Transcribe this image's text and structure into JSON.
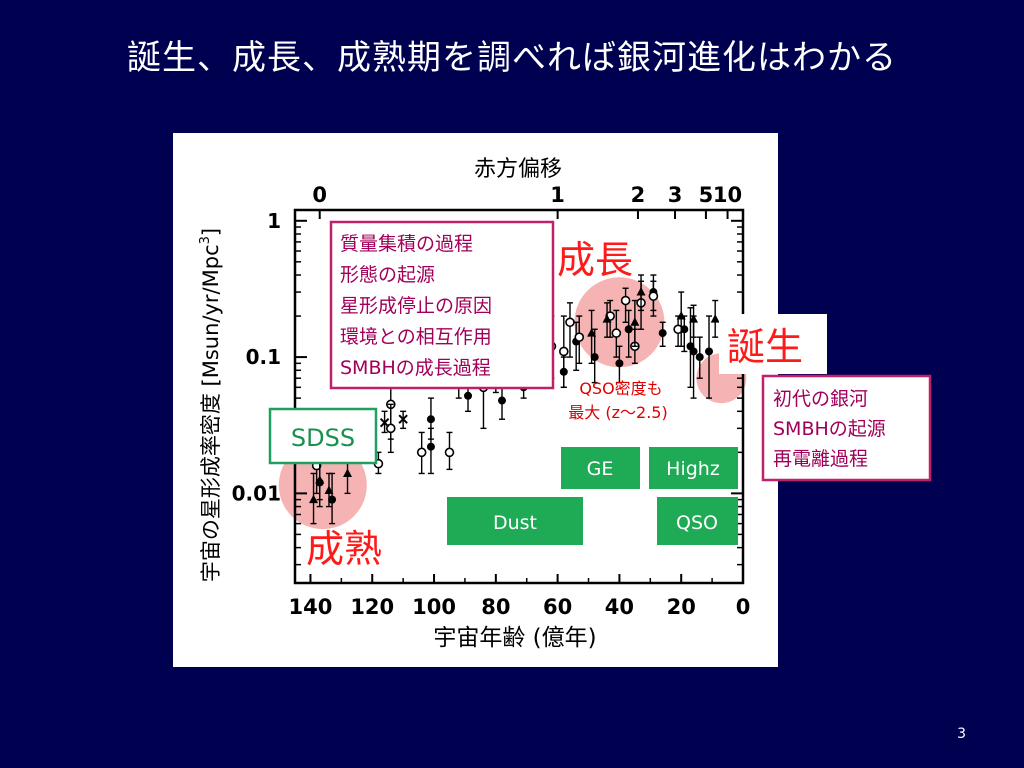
{
  "slide": {
    "title": "誕生、成長、成熟期を調べれば銀河進化はわかる",
    "page_number": "3"
  },
  "chart_data": {
    "type": "scatter",
    "title": "",
    "xlabel": "宇宙年齢 (億年)",
    "ylabel": "宇宙の星形成率密度 [Msun/yr/Mpc",
    "ylabel_sup": "3",
    "ylabel_close": "]",
    "top_axis_label": "赤方偏移",
    "top_axis_ticks": [
      {
        "label": "0",
        "age": 137
      },
      {
        "label": "1",
        "age": 60
      },
      {
        "label": "2",
        "age": 34
      },
      {
        "label": "3",
        "age": 22
      },
      {
        "label": "5",
        "age": 12
      },
      {
        "label": "10",
        "age": 5
      }
    ],
    "xlim": [
      145,
      0
    ],
    "x_ticks": [
      140,
      120,
      100,
      80,
      60,
      40,
      20,
      0
    ],
    "ylim": [
      0.0022,
      1.2
    ],
    "y_scale": "log",
    "y_ticks": [
      {
        "value": 1,
        "label": "1"
      },
      {
        "value": 0.1,
        "label": "0.1"
      },
      {
        "value": 0.01,
        "label": "0.01"
      }
    ],
    "series": [
      {
        "marker": "filled-circle",
        "points": [
          {
            "x": 137,
            "y": 0.012,
            "lo": 0.008,
            "hi": 0.018
          },
          {
            "x": 133,
            "y": 0.009,
            "lo": 0.006,
            "hi": 0.014
          },
          {
            "x": 101,
            "y": 0.035,
            "lo": 0.025,
            "hi": 0.05
          },
          {
            "x": 101,
            "y": 0.022,
            "lo": 0.014,
            "hi": 0.03
          },
          {
            "x": 89,
            "y": 0.052,
            "lo": 0.04,
            "hi": 0.065
          },
          {
            "x": 80,
            "y": 0.07,
            "lo": 0.055,
            "hi": 0.09
          },
          {
            "x": 78,
            "y": 0.048,
            "lo": 0.035,
            "hi": 0.06
          },
          {
            "x": 71,
            "y": 0.06,
            "lo": 0.05,
            "hi": 0.072
          },
          {
            "x": 58,
            "y": 0.078,
            "lo": 0.06,
            "hi": 0.1
          },
          {
            "x": 54,
            "y": 0.13,
            "lo": 0.08,
            "hi": 0.18
          },
          {
            "x": 48,
            "y": 0.1,
            "lo": 0.065,
            "hi": 0.16
          },
          {
            "x": 40,
            "y": 0.09,
            "lo": 0.065,
            "hi": 0.12
          },
          {
            "x": 37,
            "y": 0.16,
            "lo": 0.1,
            "hi": 0.22
          },
          {
            "x": 29,
            "y": 0.3,
            "lo": 0.22,
            "hi": 0.4
          },
          {
            "x": 26,
            "y": 0.15,
            "lo": 0.12,
            "hi": 0.18
          },
          {
            "x": 19,
            "y": 0.16,
            "lo": 0.11,
            "hi": 0.2
          },
          {
            "x": 17,
            "y": 0.12,
            "lo": 0.06,
            "hi": 0.23
          },
          {
            "x": 16,
            "y": 0.11,
            "lo": 0.05,
            "hi": 0.2
          },
          {
            "x": 14,
            "y": 0.1,
            "lo": 0.07,
            "hi": 0.14
          },
          {
            "x": 11,
            "y": 0.11,
            "lo": 0.05,
            "hi": 0.2
          }
        ]
      },
      {
        "marker": "open-circle",
        "points": [
          {
            "x": 138,
            "y": 0.016,
            "lo": 0.01,
            "hi": 0.025
          },
          {
            "x": 118,
            "y": 0.0165,
            "lo": 0.014,
            "hi": 0.02
          },
          {
            "x": 114,
            "y": 0.045,
            "lo": 0.025,
            "hi": 0.065
          },
          {
            "x": 114,
            "y": 0.03,
            "lo": 0.02,
            "hi": 0.045
          },
          {
            "x": 104,
            "y": 0.02,
            "lo": 0.014,
            "hi": 0.028
          },
          {
            "x": 95,
            "y": 0.02,
            "lo": 0.015,
            "hi": 0.028
          },
          {
            "x": 84,
            "y": 0.06,
            "lo": 0.03,
            "hi": 0.11
          },
          {
            "x": 79,
            "y": 0.1,
            "lo": 0.06,
            "hi": 0.16
          },
          {
            "x": 62,
            "y": 0.12,
            "lo": 0.07,
            "hi": 0.2
          },
          {
            "x": 58,
            "y": 0.11,
            "lo": 0.06,
            "hi": 0.2
          },
          {
            "x": 56,
            "y": 0.18,
            "lo": 0.1,
            "hi": 0.25
          },
          {
            "x": 53,
            "y": 0.14,
            "lo": 0.09,
            "hi": 0.2
          },
          {
            "x": 43,
            "y": 0.2,
            "lo": 0.14,
            "hi": 0.26
          },
          {
            "x": 41,
            "y": 0.15,
            "lo": 0.1,
            "hi": 0.22
          },
          {
            "x": 38,
            "y": 0.26,
            "lo": 0.18,
            "hi": 0.32
          },
          {
            "x": 35,
            "y": 0.12,
            "lo": 0.09,
            "hi": 0.16
          },
          {
            "x": 33,
            "y": 0.25,
            "lo": 0.16,
            "hi": 0.36
          },
          {
            "x": 29,
            "y": 0.28,
            "lo": 0.2,
            "hi": 0.36
          },
          {
            "x": 21,
            "y": 0.16,
            "lo": 0.12,
            "hi": 0.2
          }
        ]
      },
      {
        "marker": "filled-triangle",
        "points": [
          {
            "x": 139,
            "y": 0.009,
            "lo": 0.006,
            "hi": 0.014
          },
          {
            "x": 137,
            "y": 0.0125,
            "lo": 0.009,
            "hi": 0.018
          },
          {
            "x": 134,
            "y": 0.0105,
            "lo": 0.008,
            "hi": 0.014
          },
          {
            "x": 128,
            "y": 0.014,
            "lo": 0.01,
            "hi": 0.02
          },
          {
            "x": 92,
            "y": 0.07,
            "lo": 0.05,
            "hi": 0.1
          },
          {
            "x": 68,
            "y": 0.11,
            "lo": 0.07,
            "hi": 0.18
          },
          {
            "x": 49,
            "y": 0.15,
            "lo": 0.09,
            "hi": 0.22
          },
          {
            "x": 44,
            "y": 0.19,
            "lo": 0.14,
            "hi": 0.25
          },
          {
            "x": 35,
            "y": 0.18,
            "lo": 0.12,
            "hi": 0.26
          },
          {
            "x": 33,
            "y": 0.3,
            "lo": 0.22,
            "hi": 0.4
          },
          {
            "x": 20,
            "y": 0.2,
            "lo": 0.12,
            "hi": 0.3
          },
          {
            "x": 16,
            "y": 0.19,
            "lo": 0.14,
            "hi": 0.24
          },
          {
            "x": 9,
            "y": 0.19,
            "lo": 0.14,
            "hi": 0.26
          }
        ]
      },
      {
        "marker": "cross",
        "points": [
          {
            "x": 116,
            "y": 0.033,
            "lo": 0.028,
            "hi": 0.04
          },
          {
            "x": 110,
            "y": 0.035,
            "lo": 0.03,
            "hi": 0.04
          }
        ]
      }
    ],
    "highlights": [
      {
        "name": "mature",
        "x": 136,
        "y": 0.0115,
        "color": "#f4a6a6"
      },
      {
        "name": "growth",
        "x": 40,
        "y": 0.18,
        "color": "#f4a6a6"
      },
      {
        "name": "birth",
        "x": 7,
        "y": 0.07,
        "color": "#f4a6a6"
      }
    ],
    "annotations": [
      {
        "name": "growth-topics-box",
        "anchor": "top-middle",
        "lines": [
          "質量集積の過程",
          "形態の起源",
          "星形成停止の原因",
          "環境との相互作用",
          "SMBHの成長過程"
        ],
        "border": "#c0206a"
      },
      {
        "name": "birth-topics-box",
        "anchor": "right",
        "lines": [
          "初代の銀河",
          "SMBHの起源",
          "再電離過程"
        ],
        "border": "#c0206a"
      },
      {
        "name": "qso-density-note",
        "lines": [
          "QSO密度も",
          "最大 (z〜2.5)"
        ],
        "color": "#e00000"
      }
    ],
    "phase_labels": [
      {
        "name": "growth",
        "text": "成長",
        "color": "#ff1a1a"
      },
      {
        "name": "birth",
        "text": "誕生",
        "color": "#ff1a1a"
      },
      {
        "name": "mature",
        "text": "成熟",
        "color": "#ff1a1a"
      }
    ],
    "survey_boxes": [
      {
        "name": "sdss",
        "text": "SDSS",
        "style": "outline",
        "color": "#20a060"
      },
      {
        "name": "ge",
        "text": "GE",
        "style": "filled",
        "color": "#1faa55"
      },
      {
        "name": "highz",
        "text": "Highz",
        "style": "filled",
        "color": "#1faa55"
      },
      {
        "name": "dust",
        "text": "Dust",
        "style": "filled",
        "color": "#1faa55"
      },
      {
        "name": "qso",
        "text": "QSO",
        "style": "filled",
        "color": "#1faa55"
      }
    ]
  }
}
